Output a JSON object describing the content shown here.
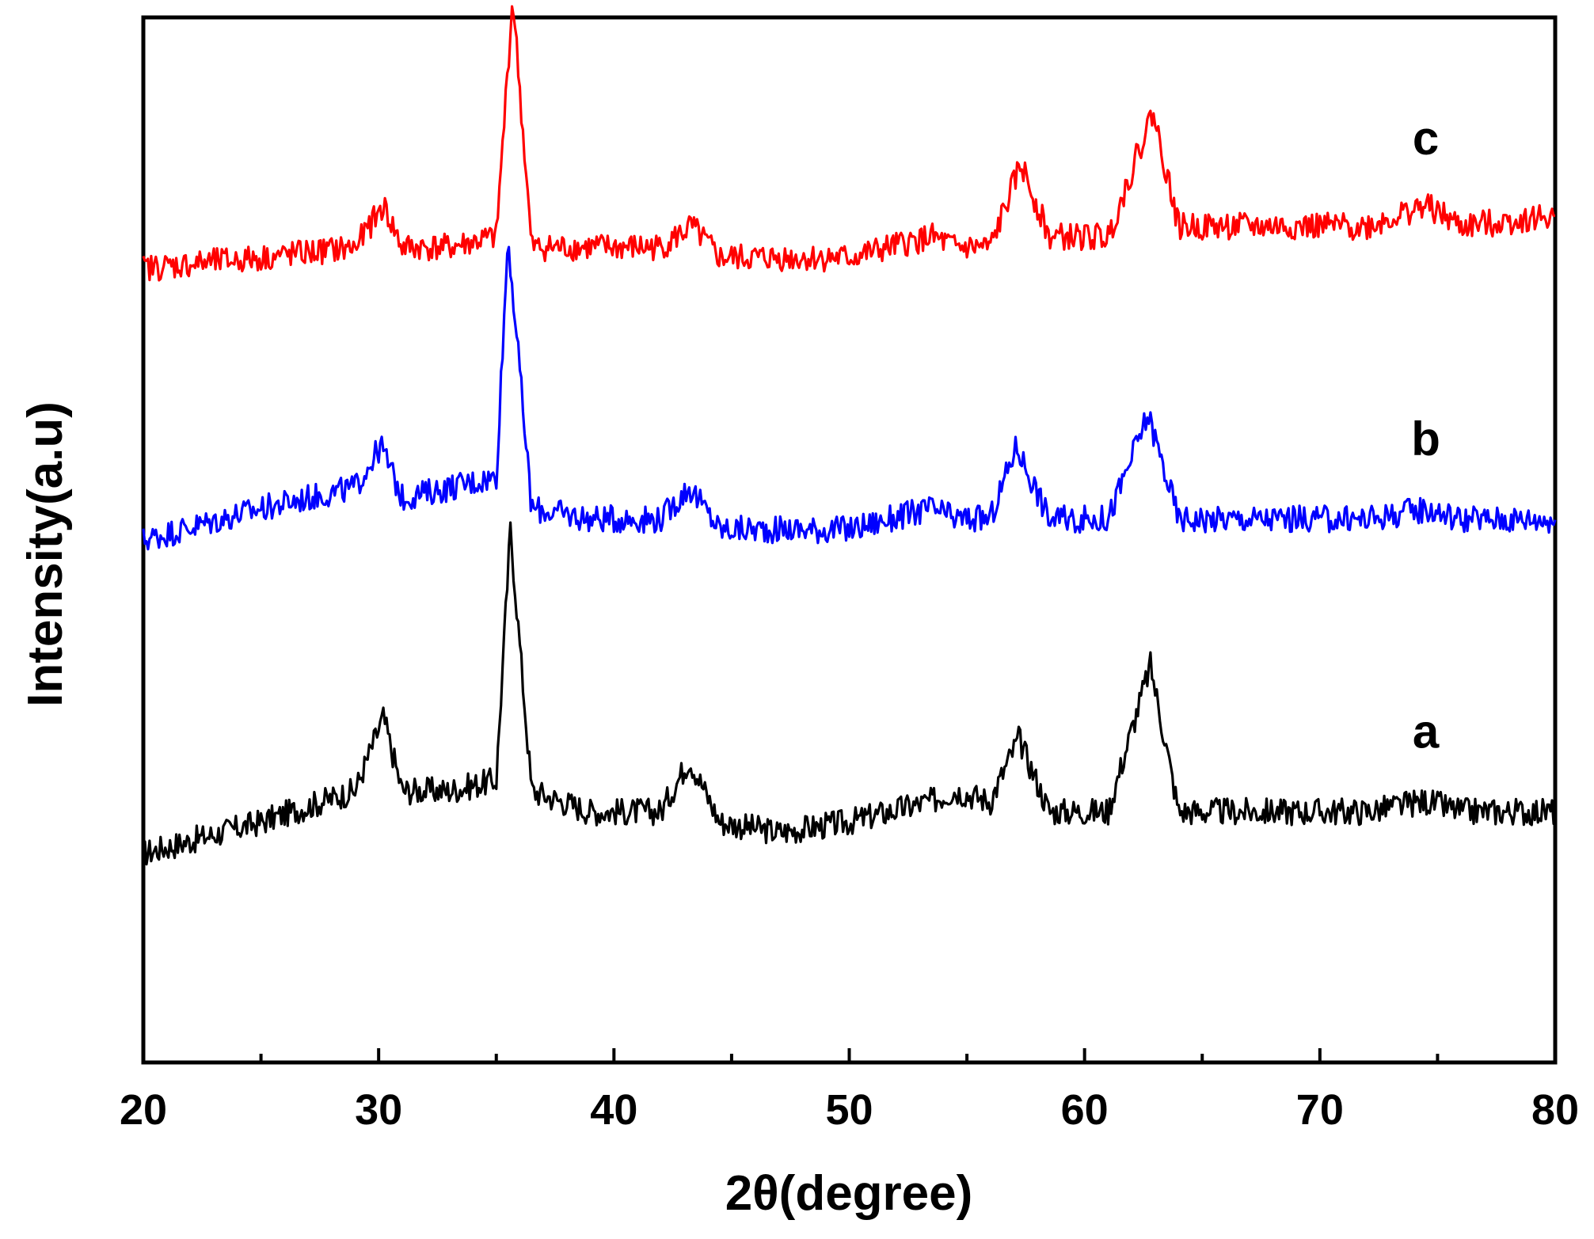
{
  "chart_data": {
    "type": "line",
    "xlabel": "2θ(degree)",
    "ylabel": "Intensity(a.u)",
    "xlim": [
      20,
      80
    ],
    "ylim": [
      0,
      10
    ],
    "x_ticks": [
      20,
      30,
      40,
      50,
      60,
      70,
      80
    ],
    "x_tick_labels": [
      "20",
      "30",
      "40",
      "50",
      "60",
      "70",
      "80"
    ],
    "y_ticks_shown": false,
    "grid": false,
    "legend": "none",
    "series": [
      {
        "label": "a",
        "color": "#000000",
        "x": [
          20,
          25,
          29,
          30.2,
          31,
          33,
          35,
          35.6,
          36.5,
          39,
          42,
          43.2,
          44.5,
          47,
          50,
          53.5,
          54.5,
          56,
          57.2,
          58.5,
          61,
          62.8,
          64,
          68,
          72,
          74.5,
          76,
          80
        ],
        "y": [
          2.0,
          2.3,
          2.6,
          3.3,
          2.6,
          2.6,
          2.7,
          5.1,
          2.6,
          2.4,
          2.4,
          2.9,
          2.3,
          2.2,
          2.3,
          2.5,
          2.6,
          2.5,
          3.1,
          2.4,
          2.4,
          3.8,
          2.4,
          2.4,
          2.4,
          2.5,
          2.4,
          2.4
        ]
      },
      {
        "label": "b",
        "color": "#0000ff",
        "x": [
          20,
          25,
          29,
          30.1,
          31,
          33,
          35,
          35.5,
          36.5,
          39,
          42,
          43.2,
          44.5,
          47,
          50,
          53.5,
          54.5,
          56,
          57.1,
          58.5,
          61,
          62.7,
          64,
          68,
          72,
          74.5,
          76,
          80
        ],
        "y": [
          5.0,
          5.3,
          5.5,
          5.9,
          5.4,
          5.5,
          5.6,
          7.9,
          5.3,
          5.2,
          5.2,
          5.5,
          5.1,
          5.1,
          5.1,
          5.3,
          5.2,
          5.2,
          5.9,
          5.2,
          5.2,
          6.2,
          5.2,
          5.2,
          5.2,
          5.3,
          5.2,
          5.2
        ]
      },
      {
        "label": "c",
        "color": "#ff0000",
        "x": [
          20,
          25,
          29,
          30.2,
          31,
          33,
          35,
          35.7,
          36.5,
          39,
          42,
          43.3,
          44.5,
          47,
          50,
          53.5,
          54.5,
          56,
          57.3,
          58.5,
          61,
          62.9,
          64,
          68,
          72,
          74.5,
          76,
          80
        ],
        "y": [
          7.6,
          7.7,
          7.8,
          8.2,
          7.8,
          7.8,
          7.9,
          10.2,
          7.8,
          7.8,
          7.8,
          8.0,
          7.7,
          7.7,
          7.7,
          7.9,
          7.8,
          7.8,
          8.6,
          7.9,
          7.9,
          9.1,
          8.0,
          8.0,
          8.0,
          8.2,
          8.0,
          8.1
        ]
      }
    ]
  }
}
